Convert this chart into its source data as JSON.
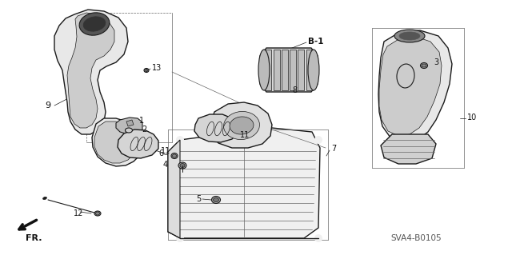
{
  "bg_color": "#ffffff",
  "line_color": "#1a1a1a",
  "dark_color": "#111111",
  "gray_color": "#666666",
  "mid_gray": "#999999",
  "fill_light": "#e8e8e8",
  "fill_mid": "#cccccc",
  "fill_dark": "#aaaaaa",
  "diagram_code": "SVA4-B0105",
  "fr_label": "FR.",
  "b1_label": "B-1",
  "fig_width": 6.4,
  "fig_height": 3.19,
  "dpi": 100
}
